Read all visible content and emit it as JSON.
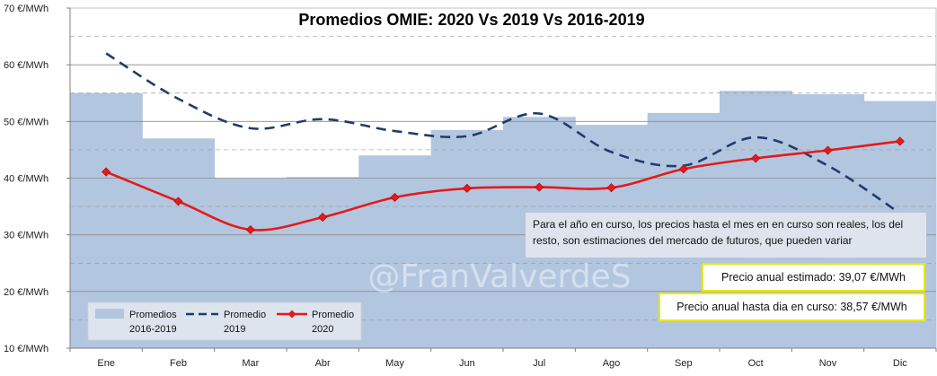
{
  "chart_data": {
    "type": "bar+line",
    "title": "Promedios  OMIE: 2020 Vs 2019 Vs 2016-2019",
    "categories": [
      "Ene",
      "Feb",
      "Mar",
      "Abr",
      "May",
      "Jun",
      "Jul",
      "Ago",
      "Sep",
      "Oct",
      "Nov",
      "Dic"
    ],
    "ylim": [
      10,
      70
    ],
    "yticks": [
      10,
      20,
      30,
      40,
      50,
      60,
      70
    ],
    "ytick_labels": [
      "10 €/MWh",
      "20 €/MWh",
      "30 €/MWh",
      "40 €/MWh",
      "50 €/MWh",
      "60 €/MWh",
      "70 €/MWh"
    ],
    "grid": true,
    "series": [
      {
        "name_line1": "Promedios",
        "name_line2": "2016-2019",
        "kind": "area-step",
        "color": "#b3c6e0",
        "values": [
          55.0,
          47.0,
          40.0,
          40.2,
          44.0,
          48.5,
          50.8,
          49.4,
          51.5,
          55.4,
          54.8,
          53.6
        ]
      },
      {
        "name_line1": "Promedio",
        "name_line2": "2019",
        "kind": "dashed-line",
        "color": "#1f3d6b",
        "values": [
          62.0,
          54.0,
          48.8,
          50.4,
          48.3,
          47.4,
          51.4,
          44.6,
          42.2,
          47.2,
          42.2,
          33.8
        ]
      },
      {
        "name_line1": "Promedio",
        "name_line2": "2020",
        "kind": "line-markers",
        "color": "#e31b1b",
        "values": [
          41.1,
          35.9,
          30.9,
          33.1,
          36.6,
          38.2,
          38.4,
          38.3,
          41.6,
          43.5,
          44.9,
          46.5
        ]
      }
    ],
    "legend_position": "bottom-left",
    "annotation": "Para el año en curso, los precios hasta el mes en en curso son reales, los del resto, son estimaciones del mercado de futuros, que pueden variar",
    "price_estimated": "Precio anual estimado: 39,07 €/MWh",
    "price_to_date": "Precio anual hasta dia en curso: 38,57 €/MWh",
    "watermark": "@FranValverdeS"
  }
}
